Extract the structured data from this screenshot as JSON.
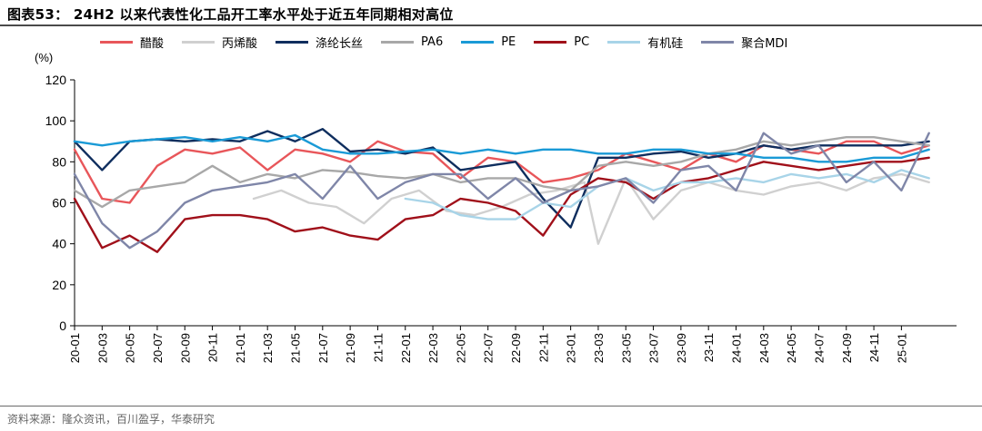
{
  "title": "图表53： 24H2 以来代表性化工品开工率水平处于近五年同期相对高位",
  "source": "资料来源：隆众资讯，百川盈孚，华泰研究",
  "chart_data": {
    "type": "line",
    "unit": "(%)",
    "ylim": [
      0,
      120
    ],
    "yticks": [
      0,
      20,
      40,
      60,
      80,
      100,
      120
    ],
    "xlim": [
      "2020-01",
      "2025-05"
    ],
    "xticks": [
      "20-01",
      "20-03",
      "20-05",
      "20-07",
      "20-09",
      "20-11",
      "21-01",
      "21-03",
      "21-05",
      "21-07",
      "21-09",
      "21-11",
      "22-01",
      "22-03",
      "22-05",
      "22-07",
      "22-09",
      "22-11",
      "23-01",
      "23-03",
      "23-05",
      "23-07",
      "23-09",
      "23-11",
      "24-01",
      "24-03",
      "24-05",
      "24-07",
      "24-09",
      "24-11",
      "25-01"
    ],
    "legend_position": "top",
    "series": [
      {
        "name": "醋酸",
        "color": "#e8565a",
        "x": [
          "2020-01",
          "2020-03",
          "2020-05",
          "2020-07",
          "2020-09",
          "2020-11",
          "2021-01",
          "2021-03",
          "2021-05",
          "2021-07",
          "2021-09",
          "2021-11",
          "2022-01",
          "2022-03",
          "2022-05",
          "2022-07",
          "2022-09",
          "2022-11",
          "2023-01",
          "2023-03",
          "2023-05",
          "2023-07",
          "2023-09",
          "2023-11",
          "2024-01",
          "2024-03",
          "2024-05",
          "2024-07",
          "2024-09",
          "2024-11",
          "2025-01",
          "2025-03"
        ],
        "y": [
          86,
          62,
          60,
          78,
          86,
          84,
          87,
          76,
          86,
          84,
          80,
          90,
          85,
          84,
          72,
          82,
          80,
          70,
          72,
          76,
          84,
          80,
          76,
          84,
          80,
          88,
          86,
          84,
          90,
          90,
          84,
          88
        ]
      },
      {
        "name": "丙烯酸",
        "color": "#d0d0d0",
        "x": [
          "2021-02",
          "2021-04",
          "2021-06",
          "2021-08",
          "2021-10",
          "2021-12",
          "2022-02",
          "2022-04",
          "2022-06",
          "2022-08",
          "2022-10",
          "2022-12",
          "2023-02",
          "2023-03",
          "2023-05",
          "2023-07",
          "2023-09",
          "2023-11",
          "2024-01",
          "2024-03",
          "2024-05",
          "2024-07",
          "2024-09",
          "2024-11",
          "2025-01",
          "2025-03"
        ],
        "y": [
          62,
          66,
          60,
          58,
          50,
          62,
          66,
          56,
          54,
          58,
          64,
          66,
          70,
          40,
          72,
          52,
          66,
          70,
          66,
          64,
          68,
          70,
          66,
          72,
          74,
          70
        ]
      },
      {
        "name": "涤纶长丝",
        "color": "#0f2e5e",
        "x": [
          "2020-01",
          "2020-03",
          "2020-05",
          "2020-07",
          "2020-09",
          "2020-11",
          "2021-01",
          "2021-03",
          "2021-05",
          "2021-07",
          "2021-09",
          "2021-11",
          "2022-01",
          "2022-03",
          "2022-05",
          "2022-07",
          "2022-09",
          "2022-11",
          "2023-01",
          "2023-03",
          "2023-05",
          "2023-07",
          "2023-09",
          "2023-11",
          "2024-01",
          "2024-03",
          "2024-05",
          "2024-07",
          "2024-09",
          "2024-11",
          "2025-01",
          "2025-03"
        ],
        "y": [
          90,
          76,
          90,
          91,
          90,
          91,
          90,
          95,
          90,
          96,
          85,
          86,
          84,
          87,
          76,
          78,
          80,
          62,
          48,
          82,
          82,
          84,
          85,
          82,
          84,
          88,
          86,
          88,
          88,
          88,
          88,
          90
        ]
      },
      {
        "name": "PA6",
        "color": "#a8a8a8",
        "x": [
          "2020-01",
          "2020-03",
          "2020-05",
          "2020-07",
          "2020-09",
          "2020-11",
          "2021-01",
          "2021-03",
          "2021-05",
          "2021-07",
          "2021-09",
          "2021-11",
          "2022-01",
          "2022-03",
          "2022-05",
          "2022-07",
          "2022-09",
          "2022-11",
          "2023-01",
          "2023-03",
          "2023-05",
          "2023-07",
          "2023-09",
          "2023-11",
          "2024-01",
          "2024-03",
          "2024-05",
          "2024-07",
          "2024-09",
          "2024-11",
          "2025-01",
          "2025-03"
        ],
        "y": [
          66,
          58,
          66,
          68,
          70,
          78,
          70,
          74,
          72,
          76,
          75,
          73,
          72,
          74,
          70,
          72,
          72,
          68,
          66,
          78,
          80,
          78,
          80,
          84,
          86,
          90,
          88,
          90,
          92,
          92,
          90,
          88
        ]
      },
      {
        "name": "PE",
        "color": "#1a9ad6",
        "x": [
          "2020-01",
          "2020-03",
          "2020-05",
          "2020-07",
          "2020-09",
          "2020-11",
          "2021-01",
          "2021-03",
          "2021-05",
          "2021-07",
          "2021-09",
          "2021-11",
          "2022-01",
          "2022-03",
          "2022-05",
          "2022-07",
          "2022-09",
          "2022-11",
          "2023-01",
          "2023-03",
          "2023-05",
          "2023-07",
          "2023-09",
          "2023-11",
          "2024-01",
          "2024-03",
          "2024-05",
          "2024-07",
          "2024-09",
          "2024-11",
          "2025-01",
          "2025-03"
        ],
        "y": [
          90,
          88,
          90,
          91,
          92,
          90,
          92,
          90,
          93,
          86,
          84,
          84,
          85,
          86,
          84,
          86,
          84,
          86,
          86,
          84,
          84,
          86,
          86,
          84,
          84,
          82,
          82,
          80,
          80,
          82,
          82,
          86
        ]
      },
      {
        "name": "PC",
        "color": "#a0101a",
        "x": [
          "2020-01",
          "2020-03",
          "2020-05",
          "2020-07",
          "2020-09",
          "2020-11",
          "2021-01",
          "2021-03",
          "2021-05",
          "2021-07",
          "2021-09",
          "2021-11",
          "2022-01",
          "2022-03",
          "2022-05",
          "2022-07",
          "2022-09",
          "2022-11",
          "2023-01",
          "2023-03",
          "2023-05",
          "2023-07",
          "2023-09",
          "2023-11",
          "2024-01",
          "2024-03",
          "2024-05",
          "2024-07",
          "2024-09",
          "2024-11",
          "2025-01",
          "2025-03"
        ],
        "y": [
          62,
          38,
          44,
          36,
          52,
          54,
          54,
          52,
          46,
          48,
          44,
          42,
          52,
          54,
          62,
          60,
          56,
          44,
          64,
          72,
          70,
          62,
          70,
          72,
          76,
          80,
          78,
          76,
          78,
          80,
          80,
          82
        ]
      },
      {
        "name": "有机硅",
        "color": "#a8d4e8",
        "x": [
          "2022-01",
          "2022-03",
          "2022-05",
          "2022-07",
          "2022-09",
          "2022-11",
          "2023-01",
          "2023-03",
          "2023-05",
          "2023-07",
          "2023-09",
          "2023-11",
          "2024-01",
          "2024-03",
          "2024-05",
          "2024-07",
          "2024-09",
          "2024-11",
          "2025-01",
          "2025-03"
        ],
        "y": [
          62,
          60,
          54,
          52,
          52,
          60,
          58,
          68,
          72,
          66,
          70,
          70,
          72,
          70,
          74,
          72,
          74,
          70,
          76,
          72
        ]
      },
      {
        "name": "聚合MDI",
        "color": "#7f86a8",
        "x": [
          "2020-01",
          "2020-03",
          "2020-05",
          "2020-07",
          "2020-09",
          "2020-11",
          "2021-01",
          "2021-03",
          "2021-05",
          "2021-07",
          "2021-09",
          "2021-11",
          "2022-01",
          "2022-03",
          "2022-05",
          "2022-07",
          "2022-09",
          "2022-11",
          "2023-01",
          "2023-03",
          "2023-05",
          "2023-07",
          "2023-09",
          "2023-11",
          "2024-01",
          "2024-03",
          "2024-05",
          "2024-07",
          "2024-09",
          "2024-11",
          "2025-01",
          "2025-03"
        ],
        "y": [
          74,
          50,
          38,
          46,
          60,
          66,
          68,
          70,
          74,
          62,
          78,
          62,
          70,
          74,
          74,
          62,
          72,
          60,
          66,
          68,
          72,
          60,
          76,
          78,
          66,
          94,
          84,
          88,
          70,
          80,
          66,
          94
        ]
      }
    ]
  }
}
